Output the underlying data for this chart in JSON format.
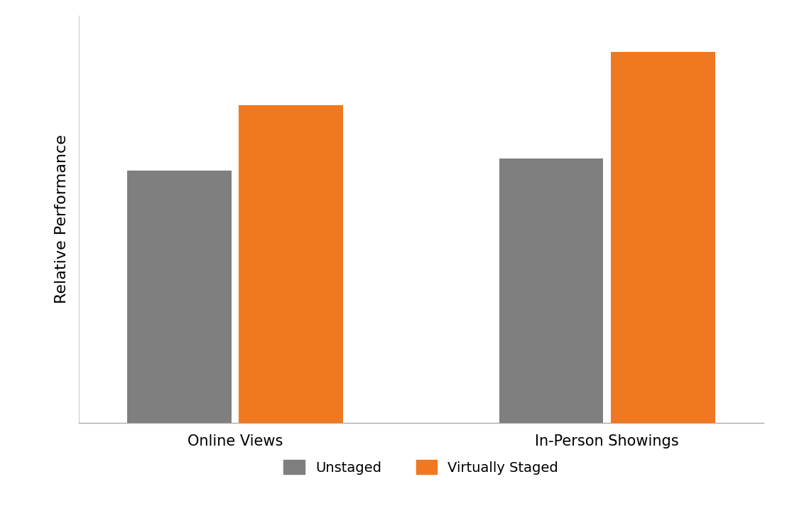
{
  "categories": [
    "Online Views",
    "In-Person Showings"
  ],
  "unstaged_values": [
    62,
    65
  ],
  "staged_values": [
    78,
    91
  ],
  "unstaged_color": "#7f7f7f",
  "staged_color": "#F07820",
  "ylabel": "Relative Performance",
  "legend_labels": [
    "Unstaged",
    "Virtually Staged"
  ],
  "ylim": [
    0,
    100
  ],
  "bar_width": 0.28,
  "background_color": "#ffffff",
  "ylabel_fontsize": 16,
  "xtick_fontsize": 15,
  "legend_fontsize": 14
}
